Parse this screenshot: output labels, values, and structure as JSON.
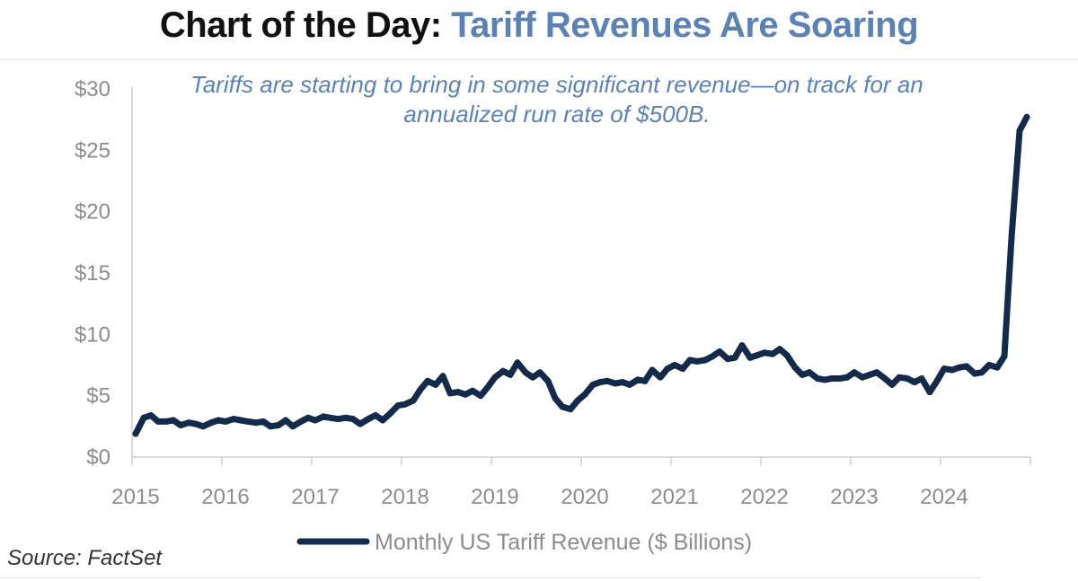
{
  "header": {
    "title_lead": "Chart of the Day:",
    "title_accent": "Tariff Revenues Are Soaring",
    "subtitle": "Tariffs are starting to bring in some significant revenue—on track for an annualized run rate of $500B."
  },
  "source": "Source: FactSet",
  "colors": {
    "line": "#142a4a",
    "accent": "#5b82b3",
    "tick": "#8c8c8c",
    "axis": "#cfcfcf"
  },
  "chart_data": {
    "type": "line",
    "title": "Chart of the Day: Tariff Revenues Are Soaring",
    "xlabel": "",
    "ylabel": "",
    "ylim": [
      0,
      30
    ],
    "xlim": [
      2015,
      2025
    ],
    "y_ticks": [
      0,
      5,
      10,
      15,
      20,
      25,
      30
    ],
    "y_tick_labels": [
      "$0",
      "$5",
      "$10",
      "$15",
      "$20",
      "$25",
      "$30"
    ],
    "x_ticks": [
      2015,
      2016,
      2017,
      2018,
      2019,
      2020,
      2021,
      2022,
      2023,
      2024
    ],
    "x_tick_labels": [
      "2015",
      "2016",
      "2017",
      "2018",
      "2019",
      "2020",
      "2021",
      "2022",
      "2023",
      "2024"
    ],
    "grid": false,
    "legend": "bottom-center",
    "series": [
      {
        "name": "Monthly US Tariff Revenue ($ Billions)",
        "x": [
          2015.04,
          2015.13,
          2015.21,
          2015.29,
          2015.38,
          2015.46,
          2015.54,
          2015.63,
          2015.71,
          2015.79,
          2015.88,
          2015.96,
          2016.04,
          2016.13,
          2016.21,
          2016.29,
          2016.38,
          2016.46,
          2016.54,
          2016.63,
          2016.71,
          2016.79,
          2016.88,
          2016.96,
          2017.04,
          2017.13,
          2017.21,
          2017.29,
          2017.38,
          2017.46,
          2017.54,
          2017.63,
          2017.71,
          2017.79,
          2017.88,
          2017.96,
          2018.04,
          2018.13,
          2018.21,
          2018.29,
          2018.38,
          2018.46,
          2018.54,
          2018.63,
          2018.71,
          2018.79,
          2018.88,
          2018.96,
          2019.04,
          2019.13,
          2019.21,
          2019.29,
          2019.38,
          2019.46,
          2019.54,
          2019.63,
          2019.71,
          2019.79,
          2019.88,
          2019.96,
          2020.04,
          2020.13,
          2020.21,
          2020.29,
          2020.38,
          2020.46,
          2020.54,
          2020.63,
          2020.71,
          2020.79,
          2020.88,
          2020.96,
          2021.04,
          2021.13,
          2021.21,
          2021.29,
          2021.38,
          2021.46,
          2021.54,
          2021.63,
          2021.71,
          2021.79,
          2021.88,
          2021.96,
          2022.04,
          2022.13,
          2022.21,
          2022.29,
          2022.38,
          2022.46,
          2022.54,
          2022.63,
          2022.71,
          2022.79,
          2022.88,
          2022.96,
          2023.04,
          2023.13,
          2023.21,
          2023.29,
          2023.38,
          2023.46,
          2023.54,
          2023.63,
          2023.71,
          2023.79,
          2023.88,
          2023.96,
          2024.04,
          2024.13,
          2024.21,
          2024.29,
          2024.38,
          2024.46,
          2024.54,
          2024.63,
          2024.71,
          2024.79,
          2024.88,
          2024.96
        ],
        "values": [
          1.9,
          3.2,
          3.4,
          2.9,
          2.9,
          3.0,
          2.6,
          2.8,
          2.7,
          2.5,
          2.8,
          3.0,
          2.9,
          3.1,
          3.0,
          2.9,
          2.8,
          2.9,
          2.5,
          2.6,
          3.0,
          2.5,
          2.9,
          3.2,
          3.0,
          3.3,
          3.2,
          3.1,
          3.2,
          3.1,
          2.7,
          3.1,
          3.4,
          3.0,
          3.6,
          4.2,
          4.3,
          4.6,
          5.5,
          6.2,
          5.9,
          6.6,
          5.2,
          5.3,
          5.1,
          5.4,
          5.0,
          5.7,
          6.5,
          7.0,
          6.7,
          7.7,
          6.9,
          6.5,
          6.9,
          6.2,
          4.8,
          4.1,
          3.9,
          4.6,
          5.1,
          5.9,
          6.1,
          6.2,
          6.0,
          6.1,
          5.9,
          6.3,
          6.2,
          7.1,
          6.5,
          7.2,
          7.5,
          7.2,
          7.9,
          7.8,
          7.9,
          8.2,
          8.6,
          8.0,
          8.1,
          9.1,
          8.1,
          8.3,
          8.5,
          8.4,
          8.8,
          8.3,
          7.3,
          6.7,
          6.9,
          6.4,
          6.3,
          6.4,
          6.4,
          6.5,
          6.9,
          6.5,
          6.7,
          6.9,
          6.4,
          5.9,
          6.5,
          6.4,
          6.1,
          6.4,
          5.3,
          6.2,
          7.2,
          7.1,
          7.3,
          7.4,
          6.8,
          6.9,
          7.5,
          7.3,
          8.2,
          17.9,
          26.6,
          27.7
        ]
      }
    ]
  }
}
